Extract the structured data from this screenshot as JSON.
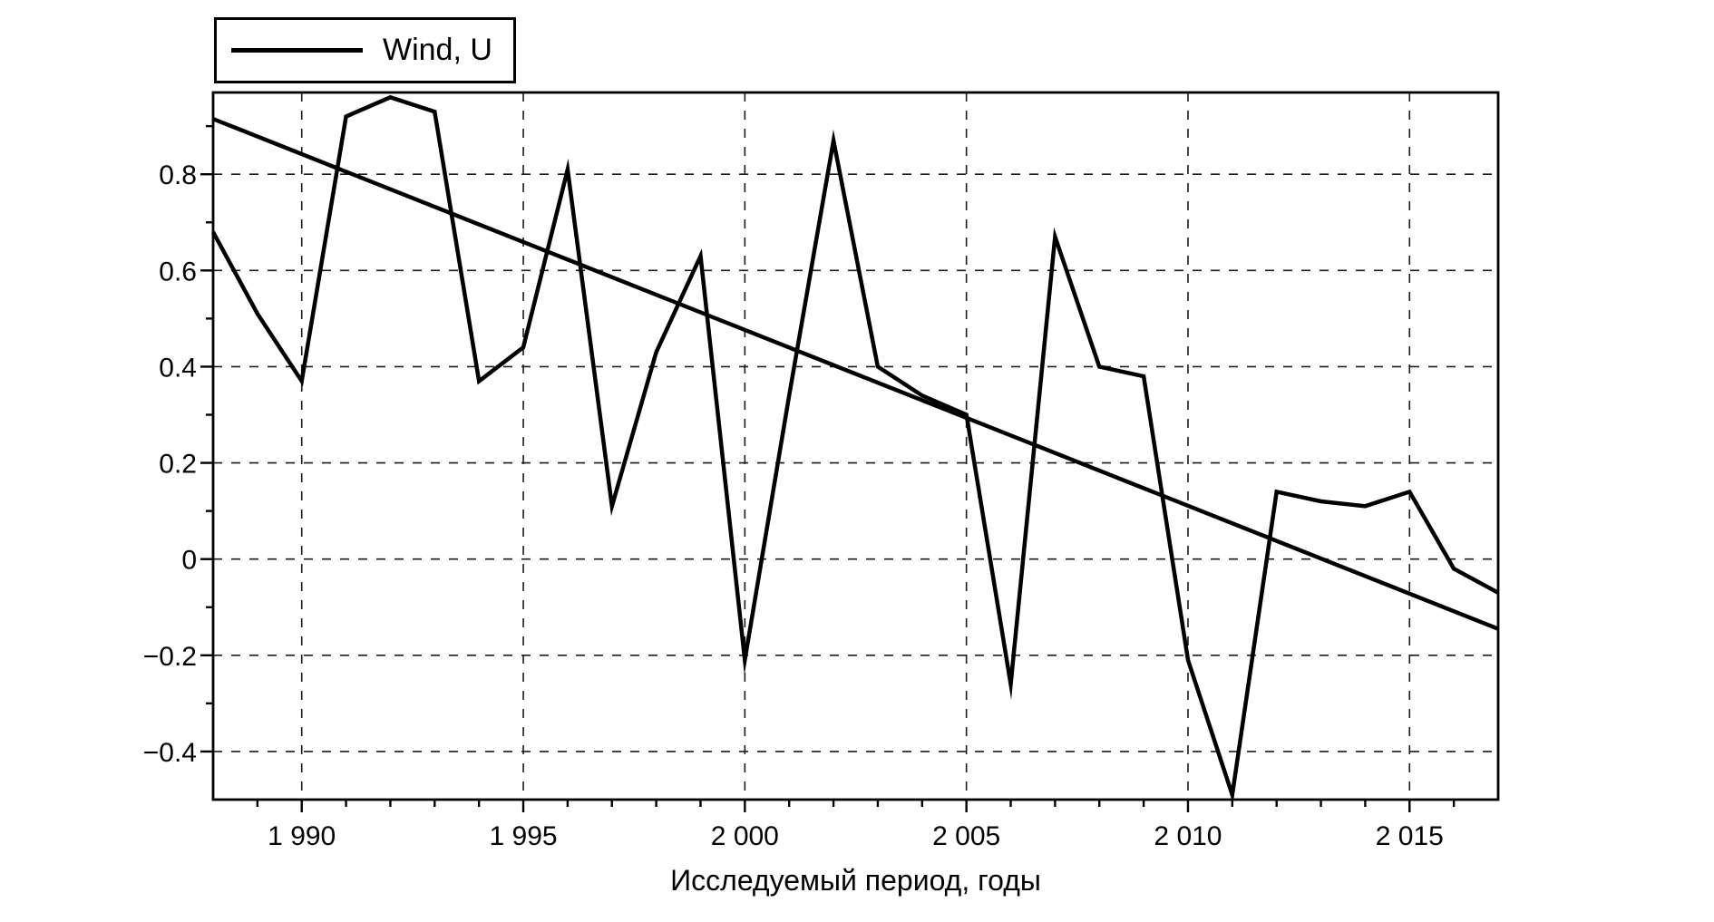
{
  "chart_data": {
    "type": "line",
    "title": "",
    "xlabel": "Исследуемый период, годы",
    "ylabel": "",
    "xlim": [
      1988,
      2017
    ],
    "ylim": [
      -0.5,
      0.97
    ],
    "grid": "dashed on major ticks, both axes",
    "legend": {
      "entries": [
        "Wind, U"
      ],
      "position": "top-left",
      "line_color": "#000000"
    },
    "series": [
      {
        "name": "Wind, U",
        "type": "line",
        "x": [
          1988,
          1989,
          1990,
          1991,
          1992,
          1993,
          1994,
          1995,
          1996,
          1997,
          1998,
          1999,
          2000,
          2001,
          2002,
          2003,
          2004,
          2005,
          2006,
          2007,
          2008,
          2009,
          2010,
          2011,
          2012,
          2013,
          2014,
          2015,
          2016,
          2017
        ],
        "values": [
          0.68,
          0.51,
          0.37,
          0.92,
          0.96,
          0.93,
          0.37,
          0.44,
          0.81,
          0.11,
          0.43,
          0.63,
          -0.21,
          0.34,
          0.87,
          0.4,
          0.34,
          0.3,
          -0.26,
          0.67,
          0.4,
          0.38,
          -0.21,
          -0.49,
          0.14,
          0.12,
          0.11,
          0.14,
          -0.02,
          -0.07
        ]
      },
      {
        "name": "linear trend",
        "type": "straight-line",
        "x": [
          1988,
          2017
        ],
        "values": [
          0.915,
          -0.145
        ]
      }
    ],
    "xticks": {
      "major": [
        {
          "value": 1990,
          "label": "1 990"
        },
        {
          "value": 1995,
          "label": "1 995"
        },
        {
          "value": 2000,
          "label": "2 000"
        },
        {
          "value": 2005,
          "label": "2 005"
        },
        {
          "value": 2010,
          "label": "2 010"
        },
        {
          "value": 2015,
          "label": "2 015"
        }
      ],
      "minor_step": 1
    },
    "yticks": {
      "major": [
        {
          "value": 0.8,
          "label": "0.8"
        },
        {
          "value": 0.6,
          "label": "0.6"
        },
        {
          "value": 0.4,
          "label": "0.4"
        },
        {
          "value": 0.2,
          "label": "0.2"
        },
        {
          "value": 0,
          "label": "0"
        },
        {
          "value": -0.2,
          "label": "−0.2"
        },
        {
          "value": -0.4,
          "label": "−0.4"
        }
      ],
      "minor_step": 0.1
    },
    "colors": {
      "background": "#ffffff",
      "line": "#000000",
      "grid": "#1a1a1a",
      "text": "#000000"
    }
  }
}
